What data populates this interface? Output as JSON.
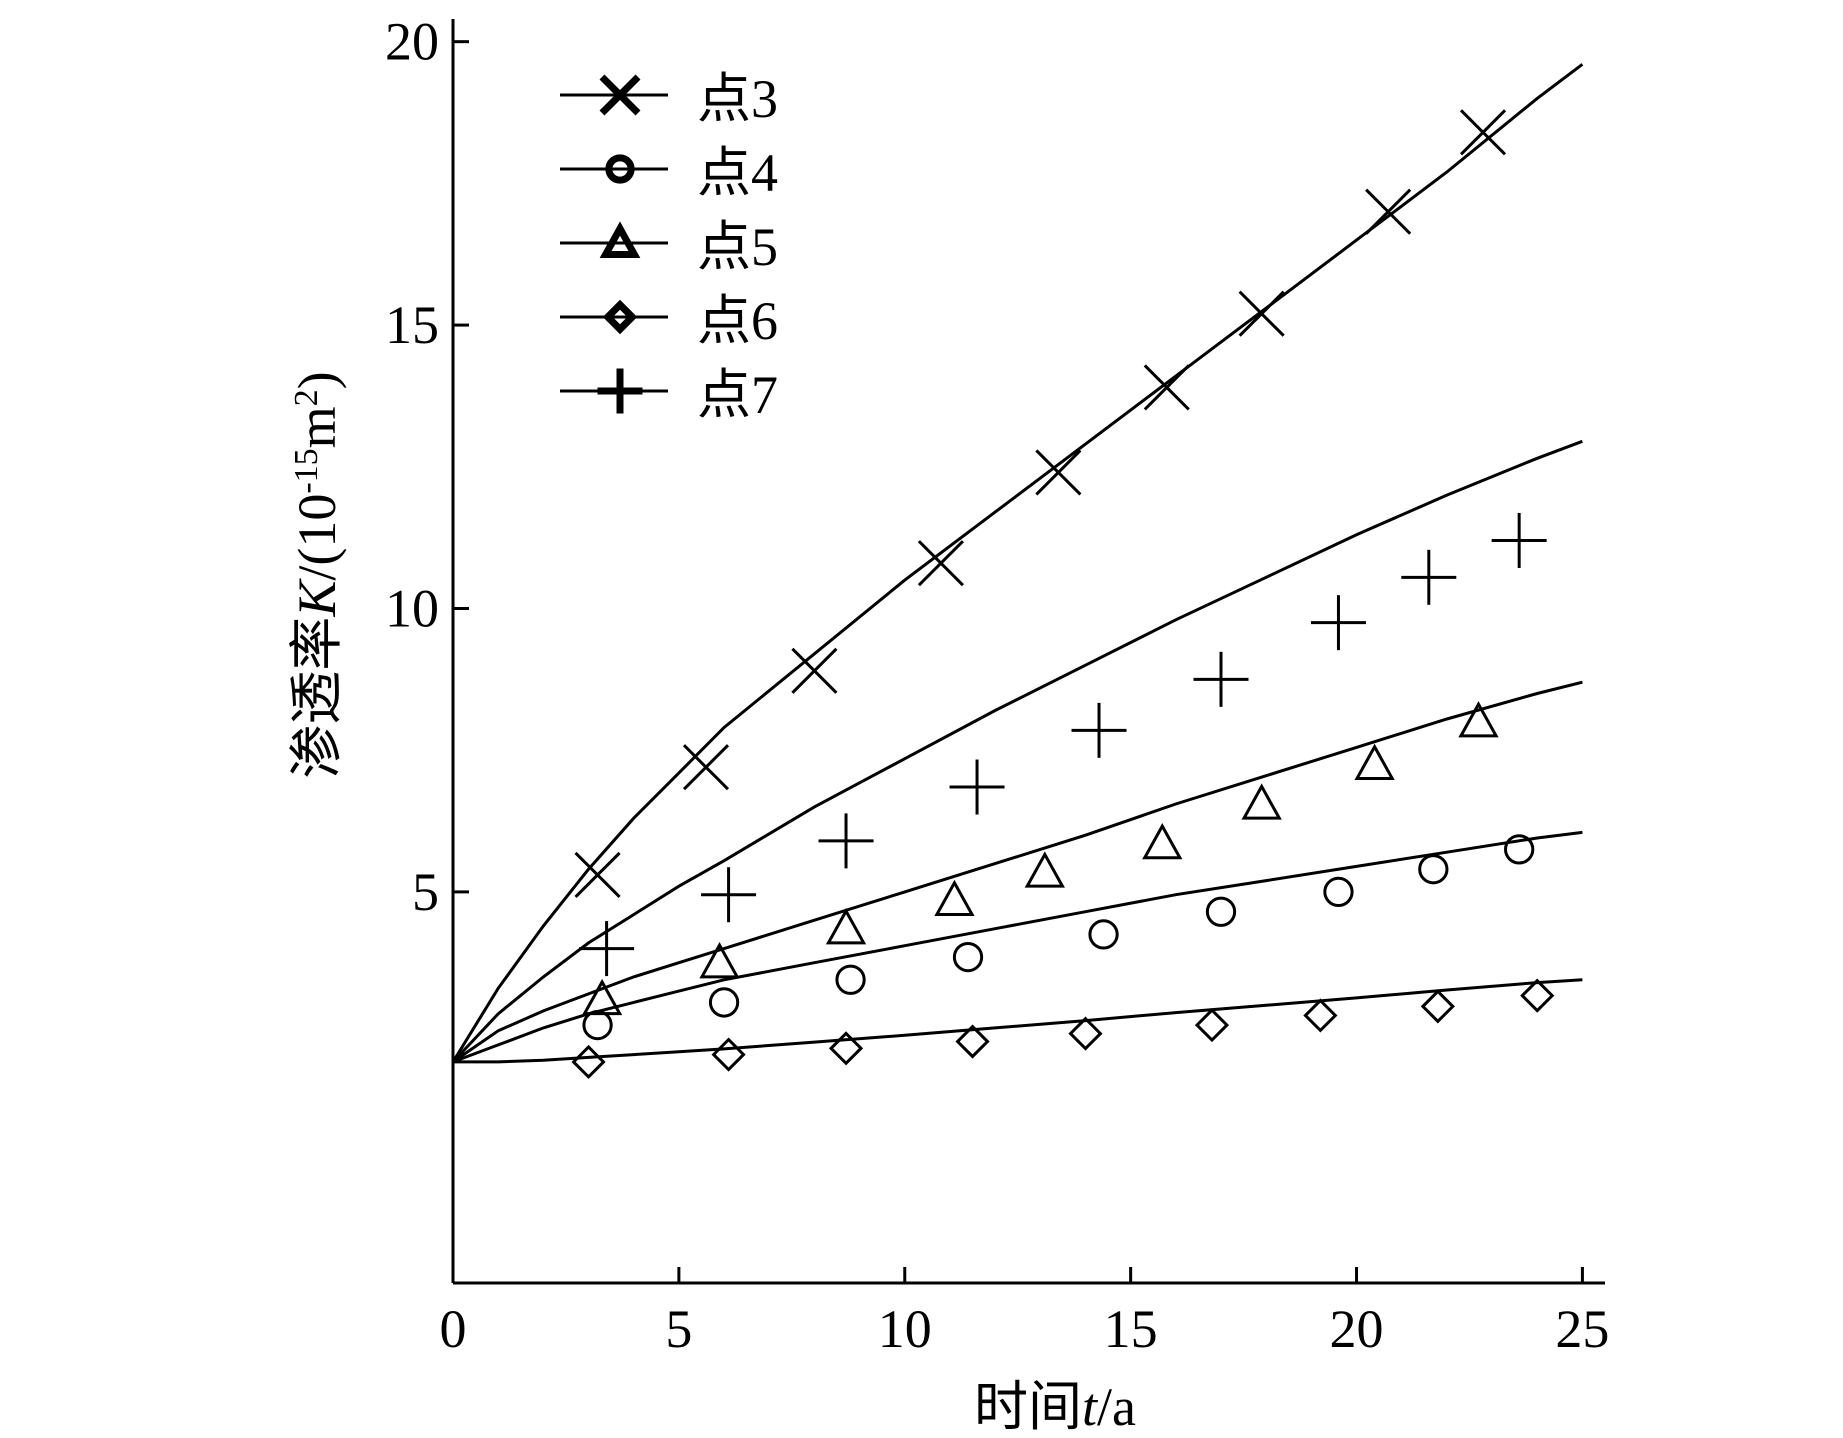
{
  "chart_data": {
    "type": "line",
    "title": "",
    "xlabel": {
      "prefix": "时间",
      "variable": "t",
      "suffix": "/a"
    },
    "ylabel": {
      "prefix": "渗透率",
      "variable": "K",
      "unit_open": "/(10",
      "unit_exp": "-15",
      "unit_mid": "m",
      "unit_exp2": "2",
      "unit_close": ")"
    },
    "xlim": [
      0,
      25.5
    ],
    "ylim": [
      -1.9,
      20.4
    ],
    "x_ticks": [
      0,
      5,
      10,
      15,
      20,
      25
    ],
    "y_ticks": [
      5,
      10,
      15,
      20
    ],
    "grid": false,
    "legend_placement": "top-left",
    "series": [
      {
        "name": "点3",
        "marker": "x",
        "curve": [
          [
            0,
            2.0
          ],
          [
            1,
            3.3
          ],
          [
            2,
            4.4
          ],
          [
            3,
            5.4
          ],
          [
            4,
            6.3
          ],
          [
            5,
            7.1
          ],
          [
            6,
            7.9
          ],
          [
            8,
            9.2
          ],
          [
            10,
            10.5
          ],
          [
            12,
            11.7
          ],
          [
            14,
            12.9
          ],
          [
            16,
            14.1
          ],
          [
            18,
            15.3
          ],
          [
            20,
            16.5
          ],
          [
            22,
            17.7
          ],
          [
            24,
            19.0
          ],
          [
            25,
            19.6
          ]
        ],
        "markers": [
          [
            3.2,
            5.3
          ],
          [
            5.6,
            7.2
          ],
          [
            8.0,
            8.9
          ],
          [
            10.8,
            10.8
          ],
          [
            13.4,
            12.4
          ],
          [
            15.8,
            13.9
          ],
          [
            17.9,
            15.2
          ],
          [
            20.7,
            17.0
          ],
          [
            22.8,
            18.4
          ]
        ]
      },
      {
        "name": "点4",
        "marker": "circle",
        "curve": [
          [
            0,
            2.0
          ],
          [
            1,
            2.3
          ],
          [
            2,
            2.6
          ],
          [
            3,
            2.85
          ],
          [
            4,
            3.05
          ],
          [
            5,
            3.25
          ],
          [
            6,
            3.45
          ],
          [
            8,
            3.75
          ],
          [
            10,
            4.05
          ],
          [
            12,
            4.35
          ],
          [
            14,
            4.65
          ],
          [
            16,
            4.95
          ],
          [
            18,
            5.2
          ],
          [
            20,
            5.45
          ],
          [
            22,
            5.7
          ],
          [
            24,
            5.95
          ],
          [
            25,
            6.05
          ]
        ],
        "markers": [
          [
            3.2,
            2.65
          ],
          [
            6.0,
            3.05
          ],
          [
            8.8,
            3.45
          ],
          [
            11.4,
            3.85
          ],
          [
            14.4,
            4.25
          ],
          [
            17.0,
            4.65
          ],
          [
            19.6,
            5.0
          ],
          [
            21.7,
            5.4
          ],
          [
            23.6,
            5.75
          ]
        ]
      },
      {
        "name": "点5",
        "marker": "triangle",
        "curve": [
          [
            0,
            2.0
          ],
          [
            1,
            2.55
          ],
          [
            2,
            2.9
          ],
          [
            3,
            3.2
          ],
          [
            4,
            3.5
          ],
          [
            5,
            3.75
          ],
          [
            6,
            4.0
          ],
          [
            8,
            4.5
          ],
          [
            10,
            5.0
          ],
          [
            12,
            5.5
          ],
          [
            14,
            6.0
          ],
          [
            16,
            6.55
          ],
          [
            18,
            7.05
          ],
          [
            20,
            7.55
          ],
          [
            22,
            8.05
          ],
          [
            24,
            8.5
          ],
          [
            25,
            8.7
          ]
        ],
        "markers": [
          [
            3.3,
            3.1
          ],
          [
            5.9,
            3.75
          ],
          [
            8.7,
            4.35
          ],
          [
            11.1,
            4.85
          ],
          [
            13.1,
            5.35
          ],
          [
            15.7,
            5.85
          ],
          [
            17.9,
            6.55
          ],
          [
            20.4,
            7.25
          ],
          [
            22.7,
            8.0
          ]
        ]
      },
      {
        "name": "点6",
        "marker": "diamond",
        "curve": [
          [
            0,
            2.0
          ],
          [
            1,
            2.0
          ],
          [
            2,
            2.03
          ],
          [
            3,
            2.08
          ],
          [
            4,
            2.13
          ],
          [
            5,
            2.18
          ],
          [
            6,
            2.23
          ],
          [
            8,
            2.35
          ],
          [
            10,
            2.47
          ],
          [
            12,
            2.6
          ],
          [
            14,
            2.73
          ],
          [
            16,
            2.87
          ],
          [
            18,
            3.0
          ],
          [
            20,
            3.13
          ],
          [
            22,
            3.27
          ],
          [
            24,
            3.4
          ],
          [
            25,
            3.45
          ]
        ],
        "markers": [
          [
            3.0,
            2.0
          ],
          [
            6.1,
            2.13
          ],
          [
            8.7,
            2.24
          ],
          [
            11.5,
            2.36
          ],
          [
            14.0,
            2.5
          ],
          [
            16.8,
            2.65
          ],
          [
            19.2,
            2.82
          ],
          [
            21.8,
            2.98
          ],
          [
            24.0,
            3.17
          ]
        ]
      },
      {
        "name": "点7",
        "marker": "plus",
        "curve": [
          [
            0,
            2.0
          ],
          [
            1,
            2.85
          ],
          [
            2,
            3.5
          ],
          [
            3,
            4.1
          ],
          [
            4,
            4.6
          ],
          [
            5,
            5.1
          ],
          [
            6,
            5.55
          ],
          [
            8,
            6.5
          ],
          [
            10,
            7.35
          ],
          [
            12,
            8.2
          ],
          [
            14,
            9.0
          ],
          [
            16,
            9.8
          ],
          [
            18,
            10.55
          ],
          [
            20,
            11.3
          ],
          [
            22,
            12.0
          ],
          [
            24,
            12.65
          ],
          [
            25,
            12.95
          ]
        ],
        "markers": [
          [
            3.4,
            4.0
          ],
          [
            6.1,
            4.95
          ],
          [
            8.7,
            5.9
          ],
          [
            11.6,
            6.85
          ],
          [
            14.3,
            7.85
          ],
          [
            17.0,
            8.75
          ],
          [
            19.6,
            9.75
          ],
          [
            21.6,
            10.55
          ],
          [
            23.6,
            11.2
          ]
        ]
      }
    ]
  }
}
